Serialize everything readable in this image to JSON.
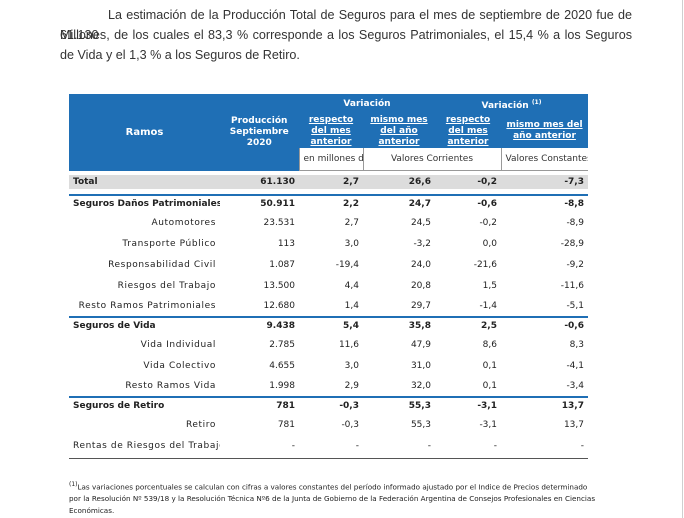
{
  "intro": {
    "line1": "La estimación de la Producción Total de Seguros para el mes de septiembre de 2020 fue de 61.130",
    "line2": "Millones, de los cuales el 83,3 % corresponde a los Seguros Patrimoniales, el 15,4 % a los Seguros de Vida y el 1,3 % a los Seguros de Retiro."
  },
  "table": {
    "header": {
      "ramos": "Ramos",
      "produccion": "Producción Septiembre 2020",
      "variacion": "Variación",
      "variacion_ajustada": "Variación",
      "variacion_ajustada_sup": "(1)",
      "respecto_mes_anterior": "respecto del mes anterior",
      "mismo_mes_anio_anterior": "mismo mes del año anterior",
      "respecto_mes_anterior_2": "respecto del mes anterior",
      "mismo_mes_anio_anterior_2": "mismo mes del año anterior",
      "unidad": "en millones de $",
      "valores_corrientes": "Valores Corrientes",
      "valores_constantes": "Valores Constantes"
    },
    "rows": [
      {
        "label": "Total",
        "prod": "61.130",
        "v1": "2,7",
        "v2": "26,6",
        "c1": "-0,2",
        "c2": "-7,3"
      },
      {
        "label": "Seguros Daños Patrimoniales",
        "prod": "50.911",
        "v1": "2,2",
        "v2": "24,7",
        "c1": "-0,6",
        "c2": "-8,8"
      },
      {
        "label": "Automotores",
        "prod": "23.531",
        "v1": "2,7",
        "v2": "24,5",
        "c1": "-0,2",
        "c2": "-8,9"
      },
      {
        "label": "Transporte Público",
        "prod": "113",
        "v1": "3,0",
        "v2": "-3,2",
        "c1": "0,0",
        "c2": "-28,9"
      },
      {
        "label": "Responsabilidad Civil",
        "prod": "1.087",
        "v1": "-19,4",
        "v2": "24,0",
        "c1": "-21,6",
        "c2": "-9,2"
      },
      {
        "label": "Riesgos del Trabajo",
        "prod": "13.500",
        "v1": "4,4",
        "v2": "20,8",
        "c1": "1,5",
        "c2": "-11,6"
      },
      {
        "label": "Resto Ramos Patrimoniales",
        "prod": "12.680",
        "v1": "1,4",
        "v2": "29,7",
        "c1": "-1,4",
        "c2": "-5,1"
      },
      {
        "label": "Seguros de Vida",
        "prod": "9.438",
        "v1": "5,4",
        "v2": "35,8",
        "c1": "2,5",
        "c2": "-0,6"
      },
      {
        "label": "Vida Individual",
        "prod": "2.785",
        "v1": "11,6",
        "v2": "47,9",
        "c1": "8,6",
        "c2": "8,3"
      },
      {
        "label": "Vida Colectivo",
        "prod": "4.655",
        "v1": "3,0",
        "v2": "31,0",
        "c1": "0,1",
        "c2": "-4,1"
      },
      {
        "label": "Resto Ramos Vida",
        "prod": "1.998",
        "v1": "2,9",
        "v2": "32,0",
        "c1": "0,1",
        "c2": "-3,4"
      },
      {
        "label": "Seguros de Retiro",
        "prod": "781",
        "v1": "-0,3",
        "v2": "55,3",
        "c1": "-3,1",
        "c2": "13,7"
      },
      {
        "label": "Retiro",
        "prod": "781",
        "v1": "-0,3",
        "v2": "55,3",
        "c1": "-3,1",
        "c2": "13,7"
      },
      {
        "label": "Rentas de Riesgos del Trabajo",
        "prod": "-",
        "v1": "-",
        "v2": "-",
        "c1": "-",
        "c2": "-"
      }
    ]
  },
  "footnote": {
    "sup": "(1)",
    "text": "Las variaciones porcentuales se calculan con cifras a valores constantes del período informado ajustado por el Indice de Precios determinado por la Resolución Nº 539/18 y la Resolución Técnica Nº6 de la Junta de Gobierno de la Federación Argentina de Consejos Profesionales en Ciencias Económicas."
  },
  "colors": {
    "header_blue": "#1f6fb5",
    "total_gray": "#dcdcdc"
  }
}
